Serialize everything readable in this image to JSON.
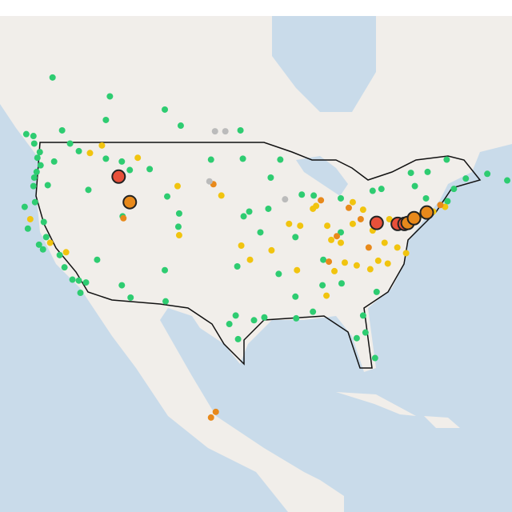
{
  "chart_data": {
    "type": "scatter",
    "xlim": [
      -127.3,
      -63
    ],
    "ylim": [
      9.5,
      63.7
    ],
    "series": [
      {
        "color": "#2ecc71",
        "size": 4,
        "x": [
          -122.3,
          -122.6,
          -123,
          -122.2,
          -122.7,
          -123,
          -123.1,
          -122.9,
          -121.3,
          -120.5,
          -117.4,
          -116.2,
          -114,
          -111,
          -108.5,
          -112,
          -119.5,
          -123.1,
          -113.5,
          -114,
          -106.6,
          -104.6,
          -97.1,
          -122.4,
          -121.9,
          -121.5,
          -119.8,
          -118.2,
          -117.2,
          -117.4,
          -119.2,
          -115.1,
          -112,
          -110.9,
          -106.6,
          -106.5,
          -111.9,
          -104.9,
          -104.8,
          -106.3,
          -100.8,
          -96.8,
          -96.7,
          -97.5,
          -98.5,
          -97.7,
          -95.4,
          -97.4,
          -94.1,
          -90.1,
          -88,
          -86.8,
          -84.4,
          -81.7,
          -82.5,
          -80.2,
          -81.4,
          -80,
          -93.3,
          -92.1,
          -89.4,
          -87.9,
          -84.5,
          -96,
          -93.6,
          -90.2,
          -94.6,
          -92.3,
          -90.2,
          -86.7,
          -84.5,
          -75.2,
          -73.8,
          -71.1,
          -70.3,
          -68.8,
          -63.6,
          -66.1,
          -71.2,
          -73.6,
          -79.4,
          -75.7,
          -80.5,
          -124,
          -116.5,
          -124.2,
          -123.8,
          -121.8,
          -118.5,
          -120.7
        ],
        "values": [
          47.6,
          47,
          48.5,
          46.2,
          45.5,
          44.9,
          44,
          42.3,
          44.1,
          46.6,
          47.7,
          43.6,
          46.9,
          45.7,
          45.8,
          46.6,
          49.9,
          49.3,
          53.5,
          51,
          52.1,
          50.4,
          49.9,
          37.8,
          37.3,
          38.6,
          36.7,
          34.1,
          32.7,
          34,
          35.4,
          36.2,
          33.5,
          32.2,
          35.1,
          31.8,
          40.8,
          39.7,
          41.1,
          42.9,
          46.8,
          46.9,
          40.8,
          35.5,
          29.4,
          30.3,
          29.8,
          27.8,
          30.1,
          30,
          30.7,
          33.5,
          33.7,
          30.3,
          27.9,
          25.8,
          28.5,
          32.8,
          44.9,
          46.8,
          43.1,
          43,
          42.7,
          41.3,
          41.6,
          38.6,
          39.1,
          34.7,
          32.3,
          36.2,
          39.1,
          44,
          42.7,
          42.4,
          43.7,
          44.8,
          44.6,
          45.3,
          46.8,
          45.5,
          43.7,
          45.4,
          43.5,
          49.5,
          33.8,
          41.8,
          39.5,
          40.2,
          48.5,
          55.5
        ]
      },
      {
        "color": "#f1c40f",
        "size": 4,
        "x": [
          -87.6,
          -86.2,
          -83,
          -81.7,
          -80,
          -85.7,
          -84.5,
          -83,
          -88,
          -89.6,
          -82.5,
          -80.8,
          -78.6,
          -79.8,
          -84,
          -85.3,
          -90,
          -86.3,
          -77.4,
          -76.3,
          -79,
          -121,
          -119,
          -104.8,
          -116,
          -114.5,
          -110,
          -105,
          -99.5,
          -95.9,
          -97,
          -93.2,
          -91,
          -80.5,
          -78.4,
          -76.9,
          -74.5,
          -72.9,
          -71.4,
          -123.5
        ],
        "values": [
          41.9,
          39.8,
          40,
          41.5,
          40.4,
          38.3,
          38,
          42.3,
          41.6,
          39.8,
          35.6,
          35.2,
          35.8,
          36.1,
          35.9,
          35,
          35.1,
          32.4,
          37.5,
          36.9,
          38,
          38,
          37,
          38.8,
          47.5,
          48.3,
          47,
          44,
          43,
          36.2,
          37.7,
          37.2,
          40,
          39.3,
          40.5,
          40.3,
          40.9,
          41.3,
          41.8,
          40.5
        ]
      },
      {
        "color": "#e8891b",
        "size": 4,
        "x": [
          -87,
          -83.5,
          -82,
          -85,
          -81,
          -86,
          -100.5,
          -111.8,
          -72,
          -100.8,
          -100.2
        ],
        "values": [
          42.5,
          41.7,
          40.5,
          38.7,
          37.5,
          36,
          44.2,
          40.6,
          42,
          19.5,
          20.1
        ]
      },
      {
        "color": "#bbbbbb",
        "size": 4,
        "x": [
          -100.3,
          -99,
          -101,
          -91.5
        ],
        "values": [
          49.8,
          49.8,
          44.5,
          42.6
        ]
      },
      {
        "color": "#e8503a",
        "size": 8,
        "x": [
          -112.4,
          -80,
          -77.35,
          -76.5
        ],
        "values": [
          45,
          40.1,
          40,
          40
        ]
      },
      {
        "color": "#e8891b",
        "size": 8,
        "x": [
          -111,
          -76.1,
          -75.3,
          -73.7
        ],
        "values": [
          42.3,
          40.1,
          40.6,
          41.2
        ]
      }
    ]
  }
}
